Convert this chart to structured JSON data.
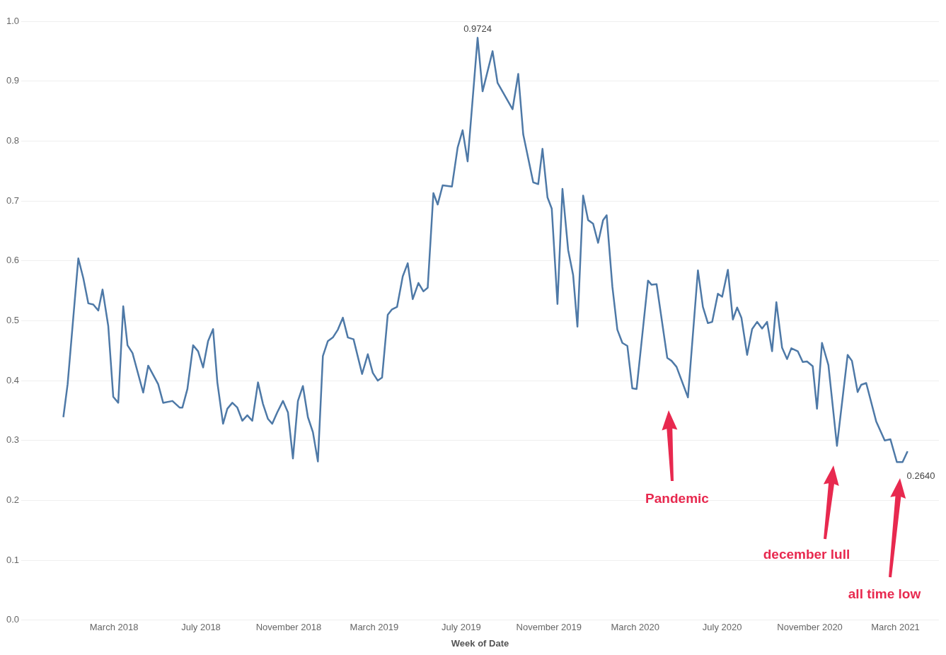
{
  "chart_data": {
    "type": "line",
    "xlabel": "Week of Date",
    "x": [
      "2017-12-20",
      "2017-12-26",
      "2018-01-10",
      "2018-01-17",
      "2018-01-24",
      "2018-01-31",
      "2018-02-07",
      "2018-02-13",
      "2018-02-21",
      "2018-02-28",
      "2018-03-07",
      "2018-03-14",
      "2018-03-20",
      "2018-03-27",
      "2018-04-11",
      "2018-04-18",
      "2018-05-02",
      "2018-05-09",
      "2018-05-22",
      "2018-06-01",
      "2018-06-05",
      "2018-06-12",
      "2018-06-20",
      "2018-06-27",
      "2018-07-04",
      "2018-07-11",
      "2018-07-18",
      "2018-07-24",
      "2018-08-01",
      "2018-08-07",
      "2018-08-14",
      "2018-08-21",
      "2018-08-28",
      "2018-09-04",
      "2018-09-11",
      "2018-09-19",
      "2018-09-26",
      "2018-10-03",
      "2018-10-09",
      "2018-10-16",
      "2018-10-24",
      "2018-10-31",
      "2018-11-07",
      "2018-11-14",
      "2018-11-21",
      "2018-11-28",
      "2018-12-05",
      "2018-12-12",
      "2018-12-19",
      "2018-12-26",
      "2019-01-02",
      "2019-01-09",
      "2019-01-16",
      "2019-01-23",
      "2019-01-31",
      "2019-02-12",
      "2019-02-20",
      "2019-02-27",
      "2019-03-06",
      "2019-03-12",
      "2019-03-20",
      "2019-03-26",
      "2019-04-02",
      "2019-04-10",
      "2019-04-17",
      "2019-04-24",
      "2019-05-02",
      "2019-05-09",
      "2019-05-15",
      "2019-05-23",
      "2019-05-29",
      "2019-06-05",
      "2019-06-18",
      "2019-06-26",
      "2019-07-03",
      "2019-07-10",
      "2019-07-24",
      "2019-07-31",
      "2019-08-14",
      "2019-08-21",
      "2019-09-11",
      "2019-09-19",
      "2019-09-26",
      "2019-10-10",
      "2019-10-17",
      "2019-10-23",
      "2019-10-30",
      "2019-11-05",
      "2019-11-13",
      "2019-11-20",
      "2019-11-28",
      "2019-12-05",
      "2019-12-11",
      "2019-12-19",
      "2019-12-26",
      "2020-01-02",
      "2020-01-09",
      "2020-01-16",
      "2020-01-21",
      "2020-01-29",
      "2020-02-05",
      "2020-02-12",
      "2020-02-19",
      "2020-02-26",
      "2020-03-03",
      "2020-03-19",
      "2020-03-24",
      "2020-03-31",
      "2020-04-15",
      "2020-04-21",
      "2020-04-28",
      "2020-05-14",
      "2020-05-28",
      "2020-06-04",
      "2020-06-11",
      "2020-06-17",
      "2020-06-25",
      "2020-07-01",
      "2020-07-09",
      "2020-07-16",
      "2020-07-22",
      "2020-07-28",
      "2020-08-05",
      "2020-08-12",
      "2020-08-19",
      "2020-08-26",
      "2020-09-02",
      "2020-09-09",
      "2020-09-15",
      "2020-09-23",
      "2020-09-30",
      "2020-10-06",
      "2020-10-15",
      "2020-10-22",
      "2020-10-28",
      "2020-11-05",
      "2020-11-11",
      "2020-11-18",
      "2020-11-27",
      "2020-12-09",
      "2020-12-24",
      "2020-12-30",
      "2021-01-07",
      "2021-01-12",
      "2021-01-19",
      "2021-02-02",
      "2021-02-14",
      "2021-02-22",
      "2021-03-03",
      "2021-03-11",
      "2021-03-18"
    ],
    "series": [
      {
        "color": "#4e79a7",
        "values": [
          0.339,
          0.394,
          0.604,
          0.571,
          0.529,
          0.527,
          0.517,
          0.552,
          0.491,
          0.373,
          0.363,
          0.524,
          0.459,
          0.446,
          0.38,
          0.425,
          0.394,
          0.363,
          0.366,
          0.355,
          0.355,
          0.386,
          0.459,
          0.449,
          0.422,
          0.466,
          0.486,
          0.397,
          0.328,
          0.353,
          0.363,
          0.355,
          0.333,
          0.342,
          0.333,
          0.397,
          0.361,
          0.336,
          0.328,
          0.347,
          0.366,
          0.347,
          0.27,
          0.366,
          0.391,
          0.339,
          0.314,
          0.265,
          0.441,
          0.466,
          0.472,
          0.485,
          0.505,
          0.472,
          0.469,
          0.411,
          0.444,
          0.413,
          0.4,
          0.405,
          0.51,
          0.519,
          0.523,
          0.574,
          0.596,
          0.536,
          0.563,
          0.549,
          0.555,
          0.713,
          0.694,
          0.726,
          0.724,
          0.789,
          0.818,
          0.766,
          0.9724,
          0.883,
          0.95,
          0.897,
          0.853,
          0.912,
          0.811,
          0.731,
          0.728,
          0.787,
          0.706,
          0.687,
          0.528,
          0.72,
          0.618,
          0.576,
          0.49,
          0.709,
          0.668,
          0.662,
          0.63,
          0.668,
          0.676,
          0.557,
          0.485,
          0.463,
          0.458,
          0.387,
          0.386,
          0.567,
          0.56,
          0.561,
          0.438,
          0.433,
          0.423,
          0.372,
          0.584,
          0.523,
          0.496,
          0.498,
          0.545,
          0.54,
          0.585,
          0.502,
          0.522,
          0.505,
          0.443,
          0.486,
          0.498,
          0.487,
          0.498,
          0.449,
          0.531,
          0.455,
          0.436,
          0.454,
          0.449,
          0.431,
          0.432,
          0.424,
          0.353,
          0.463,
          0.426,
          0.291,
          0.443,
          0.433,
          0.381,
          0.393,
          0.396,
          0.332,
          0.3,
          0.302,
          0.264,
          0.264,
          0.282
        ],
        "value_labels": [
          null,
          null,
          null,
          null,
          null,
          null,
          null,
          null,
          null,
          null,
          null,
          null,
          null,
          null,
          null,
          null,
          null,
          null,
          null,
          null,
          null,
          null,
          null,
          null,
          null,
          null,
          null,
          null,
          null,
          null,
          null,
          null,
          null,
          null,
          null,
          null,
          null,
          null,
          null,
          null,
          null,
          null,
          null,
          null,
          null,
          null,
          null,
          null,
          null,
          null,
          null,
          null,
          null,
          null,
          null,
          null,
          null,
          null,
          null,
          null,
          null,
          null,
          null,
          null,
          null,
          null,
          null,
          null,
          null,
          null,
          null,
          null,
          null,
          null,
          null,
          null,
          "0.9724",
          null,
          null,
          null,
          null,
          null,
          null,
          null,
          null,
          null,
          null,
          null,
          null,
          null,
          null,
          null,
          null,
          null,
          null,
          null,
          null,
          null,
          null,
          null,
          null,
          null,
          null,
          null,
          null,
          null,
          null,
          null,
          null,
          null,
          null,
          null,
          null,
          null,
          null,
          null,
          null,
          null,
          null,
          null,
          null,
          null,
          null,
          null,
          null,
          null,
          null,
          null,
          null,
          null,
          null,
          null,
          null,
          null,
          null,
          null,
          null,
          null,
          null,
          null,
          null,
          null,
          null,
          null,
          null,
          null,
          null,
          null,
          null,
          "0.2640",
          null
        ]
      }
    ],
    "xlim": [
      "2017-10-22",
      "2021-05-01"
    ],
    "xticks": [
      {
        "value": "2018-03-01",
        "label": "March 2018"
      },
      {
        "value": "2018-07-01",
        "label": "July 2018"
      },
      {
        "value": "2018-11-01",
        "label": "November 2018"
      },
      {
        "value": "2019-03-01",
        "label": "March 2019"
      },
      {
        "value": "2019-07-01",
        "label": "July 2019"
      },
      {
        "value": "2019-11-01",
        "label": "November 2019"
      },
      {
        "value": "2020-03-01",
        "label": "March 2020"
      },
      {
        "value": "2020-07-01",
        "label": "July 2020"
      },
      {
        "value": "2020-11-01",
        "label": "November 2020"
      },
      {
        "value": "2021-03-01",
        "label": "March 2021"
      }
    ],
    "ylim": [
      0,
      1
    ],
    "yticks": [
      {
        "value": 0,
        "label": "0.0"
      },
      {
        "value": 0.1,
        "label": "0.1"
      },
      {
        "value": 0.2,
        "label": "0.2"
      },
      {
        "value": 0.3,
        "label": "0.3"
      },
      {
        "value": 0.4,
        "label": "0.4"
      },
      {
        "value": 0.5,
        "label": "0.5"
      },
      {
        "value": 0.6,
        "label": "0.6"
      },
      {
        "value": 0.7,
        "label": "0.7"
      },
      {
        "value": 0.8,
        "label": "0.8"
      },
      {
        "value": 0.9,
        "label": "0.9"
      },
      {
        "value": 1,
        "label": "1.0"
      }
    ],
    "grid": "y",
    "legend": false,
    "marker": "none",
    "line_style": "solid",
    "annotations": [
      "Pandemic",
      "december lull",
      "all time low"
    ]
  }
}
